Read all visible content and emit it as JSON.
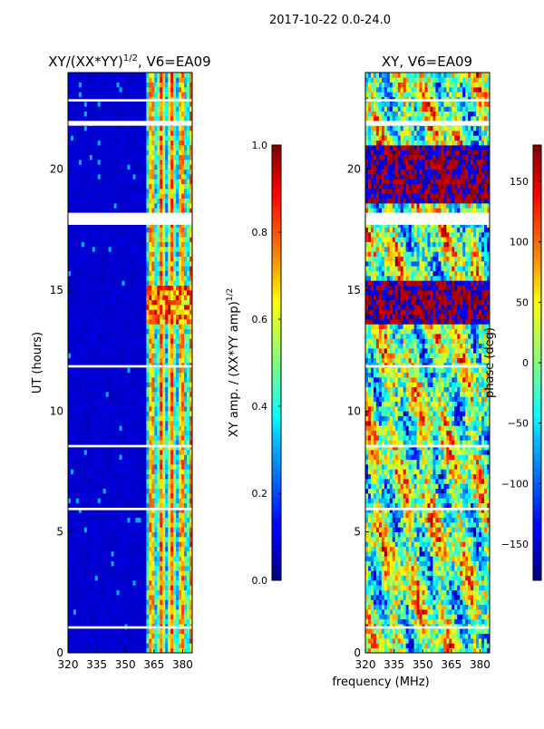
{
  "suptitle": "2017-10-22 0.0-24.0",
  "figure_xlabel": "frequency (MHz)",
  "colors": {
    "background": "#ffffff",
    "axis": "#000000",
    "gap": "#ffffff"
  },
  "chart_data": [
    {
      "type": "heatmap",
      "title": "XY/(XX*YY)^1/2, V6=EA09",
      "title_main": "XY/(XX*YY)",
      "title_sup": "1/2",
      "title_tail": ", V6=EA09",
      "xlabel": "",
      "ylabel": "UT (hours)",
      "xlim": [
        320,
        385
      ],
      "ylim": [
        0,
        24
      ],
      "xticks": [
        320,
        335,
        350,
        365,
        380
      ],
      "yticks": [
        0,
        5,
        10,
        15,
        20
      ],
      "white_gap_bands_hours": [
        [
          1.0,
          1.1
        ],
        [
          5.9,
          6.0
        ],
        [
          8.5,
          8.6
        ],
        [
          11.8,
          11.9
        ],
        [
          17.7,
          18.2
        ],
        [
          21.8,
          22.0
        ],
        [
          22.8,
          22.9
        ]
      ],
      "colorbar": {
        "label_main": "XY amp. / (XX*YY amp)",
        "label_sup": "1/2",
        "range": [
          0.0,
          1.0
        ],
        "ticks": [
          "0.0",
          "0.2",
          "0.4",
          "0.6",
          "0.8",
          "1.0"
        ],
        "colormap": "jet"
      }
    },
    {
      "type": "heatmap",
      "title": "XY, V6=EA09",
      "xlabel": "frequency (MHz)",
      "ylabel": "",
      "xlim": [
        320,
        385
      ],
      "ylim": [
        0,
        24
      ],
      "xticks": [
        320,
        335,
        350,
        365,
        380
      ],
      "yticks": [
        0,
        5,
        10,
        15,
        20
      ],
      "white_gap_bands_hours": [
        [
          1.0,
          1.1
        ],
        [
          5.9,
          6.0
        ],
        [
          8.5,
          8.6
        ],
        [
          11.8,
          11.9
        ],
        [
          17.7,
          18.2
        ],
        [
          21.8,
          22.0
        ],
        [
          22.8,
          22.9
        ]
      ],
      "colorbar": {
        "label": "phase (deg)",
        "range": [
          -180,
          180
        ],
        "ticks": [
          "−150",
          "−100",
          "−50",
          "0",
          "50",
          "100",
          "150"
        ],
        "colormap": "jet"
      }
    }
  ]
}
